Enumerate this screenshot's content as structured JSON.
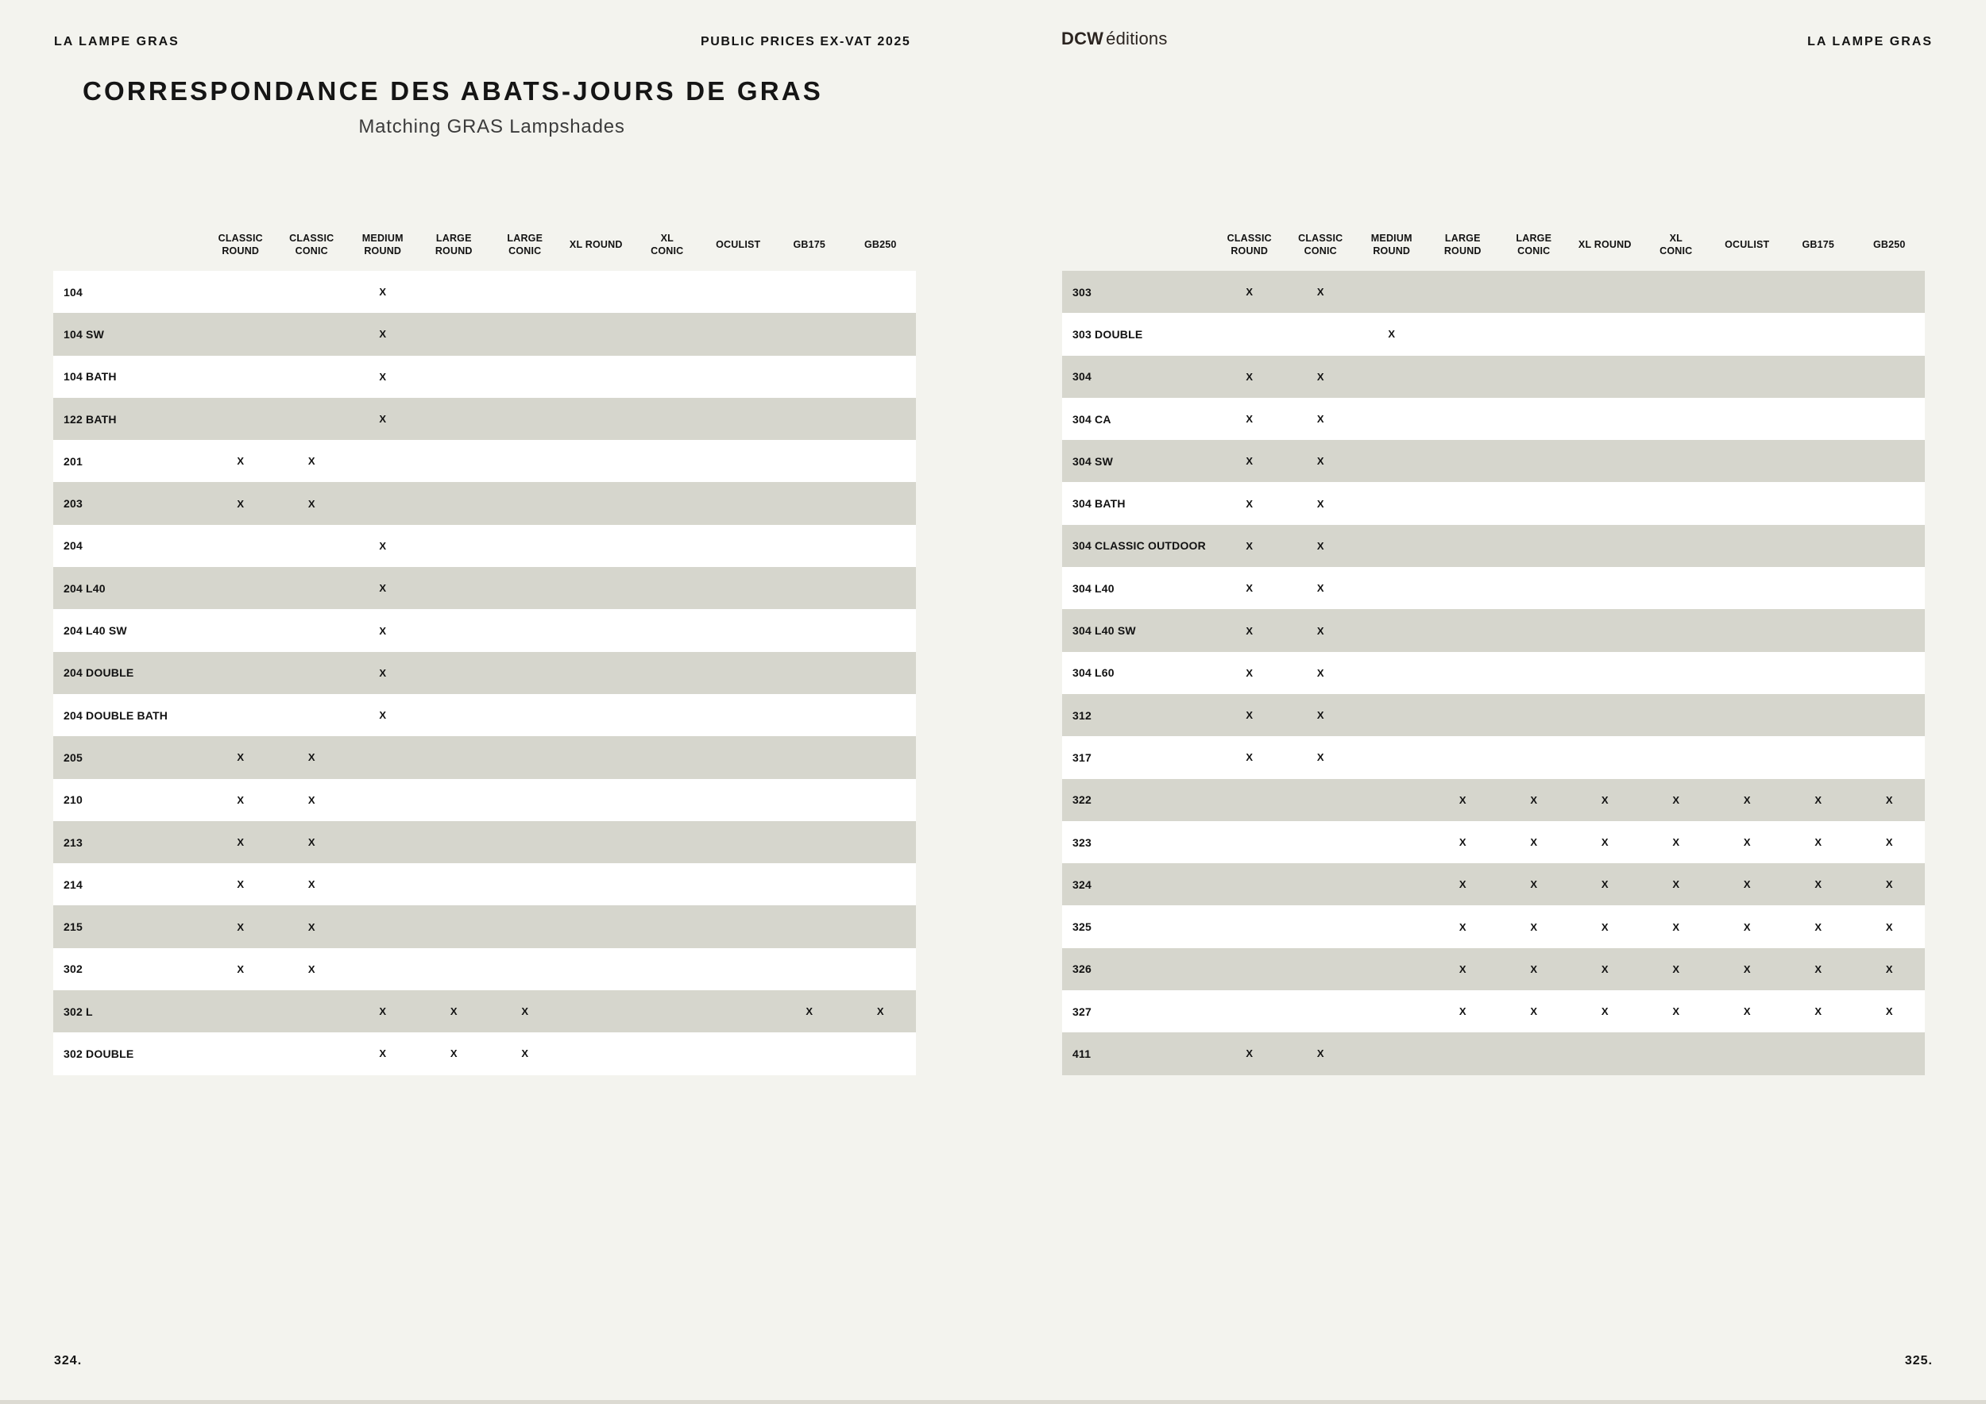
{
  "header": {
    "brand_left": "LA LAMPE GRAS",
    "center_label": "PUBLIC PRICES EX-VAT 2025",
    "logo_bold": "DCW",
    "logo_light": "éditions",
    "brand_right": "LA LAMPE GRAS"
  },
  "title": "CORRESPONDANCE DES ABATS-JOURS DE GRAS",
  "subtitle": "Matching GRAS Lampshades",
  "footer": {
    "page_left": "324.",
    "page_right": "325."
  },
  "colors": {
    "background": "#f3f3ee",
    "stripe": "#d6d6cd",
    "row": "#ffffff",
    "text": "#141414"
  },
  "mark": "X",
  "columns": [
    [
      "CLASSIC",
      "ROUND"
    ],
    [
      "CLASSIC",
      "CONIC"
    ],
    [
      "MEDIUM",
      "ROUND"
    ],
    [
      "LARGE",
      "ROUND"
    ],
    [
      "LARGE",
      "CONIC"
    ],
    [
      "XL ROUND"
    ],
    [
      "XL",
      "CONIC"
    ],
    [
      "OCULIST"
    ],
    [
      "GB175"
    ],
    [
      "GB250"
    ]
  ],
  "tables": {
    "left": {
      "first_row_shaded": false,
      "rows": [
        {
          "label": "104",
          "marks": [
            2
          ]
        },
        {
          "label": "104 SW",
          "marks": [
            2
          ]
        },
        {
          "label": "104 BATH",
          "marks": [
            2
          ]
        },
        {
          "label": "122 BATH",
          "marks": [
            2
          ]
        },
        {
          "label": "201",
          "marks": [
            0,
            1
          ]
        },
        {
          "label": "203",
          "marks": [
            0,
            1
          ]
        },
        {
          "label": "204",
          "marks": [
            2
          ]
        },
        {
          "label": "204 L40",
          "marks": [
            2
          ]
        },
        {
          "label": "204 L40 SW",
          "marks": [
            2
          ]
        },
        {
          "label": "204 DOUBLE",
          "marks": [
            2
          ]
        },
        {
          "label": "204 DOUBLE BATH",
          "marks": [
            2
          ]
        },
        {
          "label": "205",
          "marks": [
            0,
            1
          ]
        },
        {
          "label": "210",
          "marks": [
            0,
            1
          ]
        },
        {
          "label": "213",
          "marks": [
            0,
            1
          ]
        },
        {
          "label": "214",
          "marks": [
            0,
            1
          ]
        },
        {
          "label": "215",
          "marks": [
            0,
            1
          ]
        },
        {
          "label": "302",
          "marks": [
            0,
            1
          ]
        },
        {
          "label": "302 L",
          "marks": [
            2,
            3,
            4,
            8,
            9
          ]
        },
        {
          "label": "302 DOUBLE",
          "marks": [
            2,
            3,
            4
          ]
        }
      ]
    },
    "right": {
      "first_row_shaded": true,
      "rows": [
        {
          "label": "303",
          "marks": [
            0,
            1
          ]
        },
        {
          "label": "303 DOUBLE",
          "marks": [
            2
          ]
        },
        {
          "label": "304",
          "marks": [
            0,
            1
          ]
        },
        {
          "label": "304 CA",
          "marks": [
            0,
            1
          ]
        },
        {
          "label": "304 SW",
          "marks": [
            0,
            1
          ]
        },
        {
          "label": "304 BATH",
          "marks": [
            0,
            1
          ]
        },
        {
          "label": "304 CLASSIC OUTDOOR",
          "marks": [
            0,
            1
          ]
        },
        {
          "label": "304 L40",
          "marks": [
            0,
            1
          ]
        },
        {
          "label": "304 L40 SW",
          "marks": [
            0,
            1
          ]
        },
        {
          "label": "304 L60",
          "marks": [
            0,
            1
          ]
        },
        {
          "label": "312",
          "marks": [
            0,
            1
          ]
        },
        {
          "label": "317",
          "marks": [
            0,
            1
          ]
        },
        {
          "label": "322",
          "marks": [
            3,
            4,
            5,
            6,
            7,
            8,
            9
          ]
        },
        {
          "label": "323",
          "marks": [
            3,
            4,
            5,
            6,
            7,
            8,
            9
          ]
        },
        {
          "label": "324",
          "marks": [
            3,
            4,
            5,
            6,
            7,
            8,
            9
          ]
        },
        {
          "label": "325",
          "marks": [
            3,
            4,
            5,
            6,
            7,
            8,
            9
          ]
        },
        {
          "label": "326",
          "marks": [
            3,
            4,
            5,
            6,
            7,
            8,
            9
          ]
        },
        {
          "label": "327",
          "marks": [
            3,
            4,
            5,
            6,
            7,
            8,
            9
          ]
        },
        {
          "label": "411",
          "marks": [
            0,
            1
          ]
        }
      ]
    }
  }
}
